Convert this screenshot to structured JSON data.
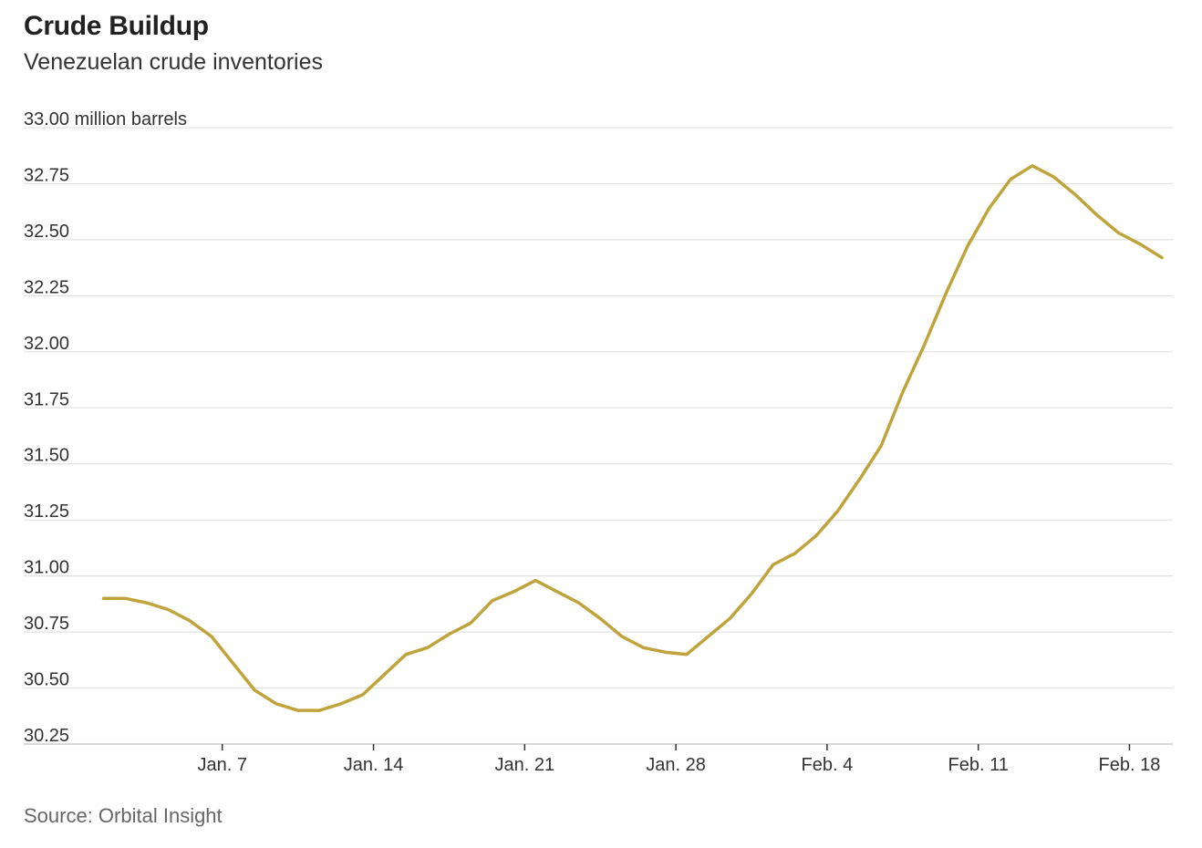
{
  "chart_data": {
    "type": "line",
    "title": "Crude Buildup",
    "subtitle": "Venezuelan crude inventories",
    "source": "Source: Orbital Insight",
    "y_unit_label": "million barrels",
    "ylim": [
      30.25,
      33.0
    ],
    "y_ticks": [
      "33.00",
      "32.75",
      "32.50",
      "32.25",
      "32.00",
      "31.75",
      "31.50",
      "31.25",
      "31.00",
      "30.75",
      "30.50",
      "30.25"
    ],
    "x_ticks": [
      {
        "day": 7,
        "label": "Jan. 7"
      },
      {
        "day": 14,
        "label": "Jan. 14"
      },
      {
        "day": 21,
        "label": "Jan. 21"
      },
      {
        "day": 28,
        "label": "Jan. 28"
      },
      {
        "day": 35,
        "label": "Feb. 4"
      },
      {
        "day": 42,
        "label": "Feb. 11"
      },
      {
        "day": 49,
        "label": "Feb. 18"
      }
    ],
    "xlim": [
      1.1,
      50.5
    ],
    "grid": "horizontal",
    "line_color": "#bfa43c",
    "series": [
      {
        "points": [
          [
            1.5,
            30.9
          ],
          [
            2.5,
            30.9
          ],
          [
            3.5,
            30.88
          ],
          [
            4.5,
            30.85
          ],
          [
            5.5,
            30.8
          ],
          [
            6.5,
            30.73
          ],
          [
            7.5,
            30.61
          ],
          [
            8.5,
            30.49
          ],
          [
            9.5,
            30.43
          ],
          [
            10.5,
            30.4
          ],
          [
            11.5,
            30.4
          ],
          [
            12.5,
            30.43
          ],
          [
            13.5,
            30.47
          ],
          [
            14.5,
            30.56
          ],
          [
            15.5,
            30.65
          ],
          [
            16.5,
            30.68
          ],
          [
            17.5,
            30.74
          ],
          [
            18.5,
            30.79
          ],
          [
            19.5,
            30.89
          ],
          [
            20.5,
            30.93
          ],
          [
            21.5,
            30.98
          ],
          [
            22.5,
            30.93
          ],
          [
            23.5,
            30.88
          ],
          [
            24.5,
            30.81
          ],
          [
            25.5,
            30.73
          ],
          [
            26.5,
            30.68
          ],
          [
            27.5,
            30.66
          ],
          [
            28.5,
            30.65
          ],
          [
            29.5,
            30.73
          ],
          [
            30.5,
            30.81
          ],
          [
            31.5,
            30.92
          ],
          [
            32.5,
            31.05
          ],
          [
            33.5,
            31.1
          ],
          [
            34.5,
            31.18
          ],
          [
            35.5,
            31.29
          ],
          [
            36.5,
            31.43
          ],
          [
            37.5,
            31.58
          ],
          [
            38.5,
            31.82
          ],
          [
            39.5,
            32.03
          ],
          [
            40.5,
            32.26
          ],
          [
            41.5,
            32.47
          ],
          [
            42.5,
            32.64
          ],
          [
            43.5,
            32.77
          ],
          [
            44.5,
            32.83
          ],
          [
            45.5,
            32.78
          ],
          [
            46.5,
            32.7
          ],
          [
            47.5,
            32.61
          ],
          [
            48.5,
            32.53
          ],
          [
            49.5,
            32.48
          ],
          [
            50.5,
            32.42
          ]
        ]
      }
    ]
  }
}
